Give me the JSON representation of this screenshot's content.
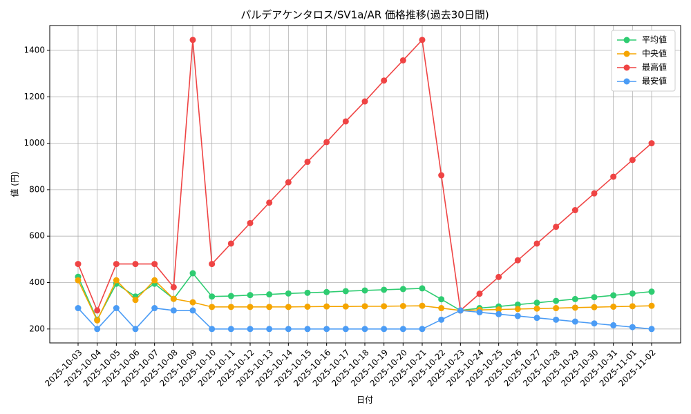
{
  "chart_data": {
    "type": "line",
    "title": "パルデアケンタロス/SV1a/AR 価格推移(過去30日間)",
    "x_label": "日付",
    "y_label": "値 (円)",
    "categories": [
      "2025-10-03",
      "2025-10-04",
      "2025-10-05",
      "2025-10-06",
      "2025-10-07",
      "2025-10-08",
      "2025-10-09",
      "2025-10-10",
      "2025-10-11",
      "2025-10-12",
      "2025-10-13",
      "2025-10-14",
      "2025-10-15",
      "2025-10-16",
      "2025-10-17",
      "2025-10-18",
      "2025-10-19",
      "2025-10-20",
      "2025-10-21",
      "2025-10-22",
      "2025-10-23",
      "2025-10-24",
      "2025-10-25",
      "2025-10-26",
      "2025-10-27",
      "2025-10-28",
      "2025-10-29",
      "2025-10-30",
      "2025-10-31",
      "2025-11-01",
      "2025-11-02"
    ],
    "series": [
      {
        "name": "平均値",
        "color": "#2ecc71",
        "values": [
          425,
          240,
          395,
          340,
          395,
          330,
          440,
          340,
          342,
          346,
          349,
          353,
          356,
          359,
          363,
          366,
          369,
          372,
          375,
          328,
          280,
          290,
          297,
          305,
          313,
          321,
          329,
          337,
          345,
          353,
          361
        ]
      },
      {
        "name": "中央値",
        "color": "#f5a500",
        "values": [
          410,
          237,
          410,
          325,
          410,
          330,
          315,
          295,
          295,
          295,
          295,
          295,
          296,
          297,
          297,
          298,
          298,
          299,
          300,
          290,
          280,
          282,
          284,
          286,
          288,
          290,
          292,
          294,
          296,
          298,
          300
        ]
      },
      {
        "name": "最高値",
        "color": "#ef4444",
        "values": [
          480,
          280,
          480,
          480,
          480,
          380,
          1445,
          480,
          568,
          656,
          744,
          832,
          920,
          1005,
          1094,
          1180,
          1270,
          1357,
          1445,
          862,
          280,
          352,
          424,
          496,
          568,
          640,
          712,
          784,
          856,
          928,
          1000
        ]
      },
      {
        "name": "最安値",
        "color": "#4b9cf5",
        "values": [
          290,
          200,
          290,
          200,
          290,
          280,
          280,
          200,
          200,
          200,
          200,
          200,
          200,
          200,
          200,
          200,
          200,
          200,
          200,
          240,
          280,
          272,
          264,
          256,
          248,
          240,
          232,
          224,
          216,
          208,
          200
        ]
      }
    ],
    "ylim": [
      140,
      1507
    ],
    "yticks": [
      200,
      400,
      600,
      800,
      1000,
      1200,
      1400
    ],
    "grid": true,
    "legend": "upper right"
  }
}
